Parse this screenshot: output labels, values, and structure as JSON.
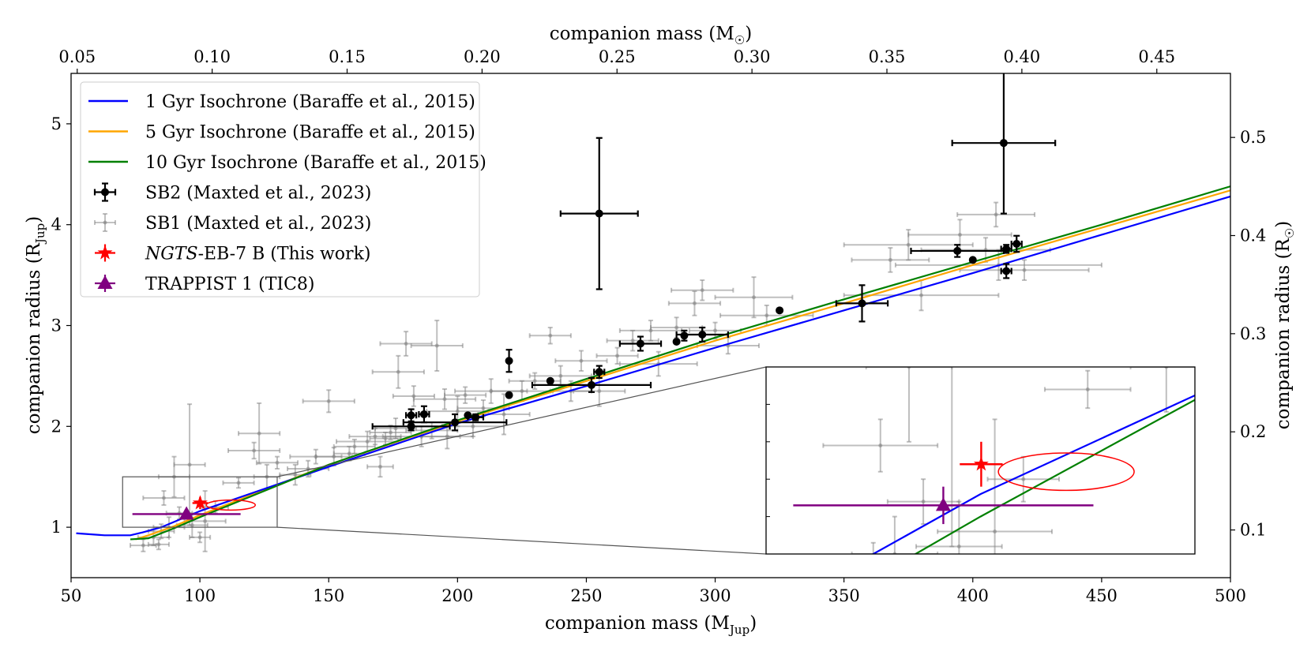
{
  "chart_data": {
    "type": "scatter",
    "title": "",
    "xlabel": "companion mass (M_Jup)",
    "ylabel": "companion radius (R_Jup)",
    "xlabel_top": "companion mass (M☉)",
    "ylabel_right": "companion radius (R☉)",
    "xlim": [
      50,
      500
    ],
    "ylim": [
      0.5,
      5.5
    ],
    "x_ticks": [
      50,
      100,
      150,
      200,
      250,
      300,
      350,
      400,
      450,
      500
    ],
    "y_ticks": [
      1,
      2,
      3,
      4,
      5
    ],
    "top_ticks": [
      0.05,
      0.1,
      0.15,
      0.2,
      0.25,
      0.3,
      0.35,
      0.4,
      0.45
    ],
    "top_tick_labels": [
      "0.05",
      "0.10",
      "0.15",
      "0.20",
      "0.25",
      "0.30",
      "0.35",
      "0.40",
      "0.45"
    ],
    "right_ticks": [
      0.1,
      0.2,
      0.3,
      0.4,
      0.5
    ],
    "right_tick_labels": [
      "0.1",
      "0.2",
      "0.3",
      "0.4",
      "0.5"
    ],
    "mjup_per_msun": 1047.6,
    "rjup_per_rsun": 9.73,
    "legend_position": "upper-left",
    "legend": [
      {
        "label": "1 Gyr Isochrone (Baraffe et al., 2015)",
        "kind": "line",
        "color": "#0000ff"
      },
      {
        "label": "5 Gyr Isochrone (Baraffe et al., 2015)",
        "kind": "line",
        "color": "#ffa500"
      },
      {
        "label": "10 Gyr Isochrone (Baraffe et al., 2015)",
        "kind": "line",
        "color": "#008000"
      },
      {
        "label": "SB2 (Maxted et al., 2023)",
        "kind": "errorbar",
        "color": "#000000"
      },
      {
        "label": "SB1 (Maxted et al., 2023)",
        "kind": "errorbar-light",
        "color": "#808080"
      },
      {
        "label_italic": "NGTS",
        "label_rest": "-EB-7 B (This work)",
        "kind": "star",
        "color": "#ff0000"
      },
      {
        "label": "TRAPPIST 1 (TIC8)",
        "kind": "triangle",
        "color": "#800080"
      }
    ],
    "series": [
      {
        "name": "1 Gyr Isochrone",
        "type": "line",
        "color": "#0000ff",
        "points": [
          [
            52,
            0.94
          ],
          [
            63,
            0.92
          ],
          [
            73,
            0.92
          ],
          [
            78,
            0.95
          ],
          [
            85,
            1.0
          ],
          [
            100,
            1.16
          ],
          [
            150,
            1.6
          ],
          [
            200,
            2.03
          ],
          [
            250,
            2.4
          ],
          [
            300,
            2.78
          ],
          [
            350,
            3.15
          ],
          [
            400,
            3.52
          ],
          [
            450,
            3.9
          ],
          [
            500,
            4.28
          ]
        ]
      },
      {
        "name": "5 Gyr Isochrone",
        "type": "line",
        "color": "#ffa500",
        "points": [
          [
            75,
            0.88
          ],
          [
            80,
            0.92
          ],
          [
            90,
            1.01
          ],
          [
            100,
            1.12
          ],
          [
            150,
            1.62
          ],
          [
            200,
            2.05
          ],
          [
            250,
            2.45
          ],
          [
            300,
            2.85
          ],
          [
            350,
            3.22
          ],
          [
            400,
            3.6
          ],
          [
            450,
            3.97
          ],
          [
            500,
            4.34
          ]
        ]
      },
      {
        "name": "10 Gyr Isochrone",
        "type": "line",
        "color": "#008000",
        "points": [
          [
            73,
            0.88
          ],
          [
            80,
            0.89
          ],
          [
            90,
            0.99
          ],
          [
            100,
            1.1
          ],
          [
            150,
            1.62
          ],
          [
            200,
            2.06
          ],
          [
            250,
            2.47
          ],
          [
            300,
            2.88
          ],
          [
            350,
            3.26
          ],
          [
            400,
            3.63
          ],
          [
            450,
            4.0
          ],
          [
            500,
            4.38
          ]
        ]
      },
      {
        "name": "SB2 (Maxted et al., 2023)",
        "type": "errorbar",
        "color": "#000000",
        "points": [
          {
            "x": 182,
            "y": 2.11,
            "xerr": 2,
            "yerr": 0.06
          },
          {
            "x": 182,
            "y": 2.0,
            "xerr": 15,
            "yerr": 0.04
          },
          {
            "x": 187,
            "y": 2.12,
            "xerr": 2,
            "yerr": 0.08
          },
          {
            "x": 199,
            "y": 2.04,
            "xerr": 20,
            "yerr": 0.08
          },
          {
            "x": 204,
            "y": 2.11,
            "xerr": 0,
            "yerr": 0
          },
          {
            "x": 207,
            "y": 2.09,
            "xerr": 3,
            "yerr": 0.03
          },
          {
            "x": 220,
            "y": 2.31,
            "xerr": 0,
            "yerr": 0
          },
          {
            "x": 220,
            "y": 2.65,
            "xerr": 0,
            "yerr": 0.11
          },
          {
            "x": 236,
            "y": 2.45,
            "xerr": 0,
            "yerr": 0
          },
          {
            "x": 252,
            "y": 2.41,
            "xerr": 23,
            "yerr": 0.07
          },
          {
            "x": 255,
            "y": 2.54,
            "xerr": 2,
            "yerr": 0.06
          },
          {
            "x": 271,
            "y": 2.82,
            "xerr": 8,
            "yerr": 0.07
          },
          {
            "x": 285,
            "y": 2.84,
            "xerr": 0,
            "yerr": 0
          },
          {
            "x": 288,
            "y": 2.9,
            "xerr": 0,
            "yerr": 0.05
          },
          {
            "x": 295,
            "y": 2.91,
            "xerr": 10,
            "yerr": 0.07
          },
          {
            "x": 255,
            "y": 4.11,
            "xerr": 15,
            "yerr": 0.75
          },
          {
            "x": 325,
            "y": 3.15,
            "xerr": 0,
            "yerr": 0
          },
          {
            "x": 357,
            "y": 3.22,
            "xerr": 10,
            "yerr": 0.18
          },
          {
            "x": 394,
            "y": 3.74,
            "xerr": 18,
            "yerr": 0.06
          },
          {
            "x": 400,
            "y": 3.65,
            "xerr": 0,
            "yerr": 0
          },
          {
            "x": 413,
            "y": 3.54,
            "xerr": 2,
            "yerr": 0.07
          },
          {
            "x": 413,
            "y": 3.76,
            "xerr": 2,
            "yerr": 0.04
          },
          {
            "x": 417,
            "y": 3.81,
            "xerr": 2,
            "yerr": 0.08
          },
          {
            "x": 412,
            "y": 4.81,
            "xerr": 20,
            "yerr": 0.7
          }
        ]
      },
      {
        "name": "SB1 (Maxted et al., 2023)",
        "type": "errorbar",
        "color": "#808080",
        "points": [
          {
            "x": 78,
            "y": 0.82,
            "xerr": 5,
            "yerr": 0.06
          },
          {
            "x": 82,
            "y": 0.9,
            "xerr": 6,
            "yerr": 0.08
          },
          {
            "x": 84,
            "y": 0.83,
            "xerr": 4,
            "yerr": 0.05
          },
          {
            "x": 85,
            "y": 0.96,
            "xerr": 5,
            "yerr": 0.07
          },
          {
            "x": 88,
            "y": 1.0,
            "xerr": 6,
            "yerr": 0.1
          },
          {
            "x": 86,
            "y": 1.29,
            "xerr": 8,
            "yerr": 0.07
          },
          {
            "x": 90,
            "y": 1.5,
            "xerr": 6,
            "yerr": 0.2
          },
          {
            "x": 92,
            "y": 1.14,
            "xerr": 5,
            "yerr": 0.06
          },
          {
            "x": 96,
            "y": 1.62,
            "xerr": 6,
            "yerr": 0.6
          },
          {
            "x": 97,
            "y": 1.02,
            "xerr": 6,
            "yerr": 0.12
          },
          {
            "x": 100,
            "y": 0.9,
            "xerr": 4,
            "yerr": 0.05
          },
          {
            "x": 102,
            "y": 1.06,
            "xerr": 8,
            "yerr": 0.3
          },
          {
            "x": 106,
            "y": 1.2,
            "xerr": 5,
            "yerr": 0.06
          },
          {
            "x": 115,
            "y": 1.44,
            "xerr": 6,
            "yerr": 0.05
          },
          {
            "x": 123,
            "y": 1.93,
            "xerr": 8,
            "yerr": 0.3
          },
          {
            "x": 121,
            "y": 1.76,
            "xerr": 10,
            "yerr": 0.08
          },
          {
            "x": 126,
            "y": 1.5,
            "xerr": 5,
            "yerr": 0.12
          },
          {
            "x": 130,
            "y": 1.64,
            "xerr": 8,
            "yerr": 0.06
          },
          {
            "x": 137,
            "y": 1.52,
            "xerr": 6,
            "yerr": 0.1
          },
          {
            "x": 142,
            "y": 1.58,
            "xerr": 8,
            "yerr": 0.08
          },
          {
            "x": 145,
            "y": 1.7,
            "xerr": 10,
            "yerr": 0.07
          },
          {
            "x": 150,
            "y": 2.25,
            "xerr": 10,
            "yerr": 0.11
          },
          {
            "x": 152,
            "y": 1.7,
            "xerr": 7,
            "yerr": 0.09
          },
          {
            "x": 158,
            "y": 1.73,
            "xerr": 6,
            "yerr": 0.07
          },
          {
            "x": 160,
            "y": 1.8,
            "xerr": 8,
            "yerr": 0.07
          },
          {
            "x": 165,
            "y": 1.85,
            "xerr": 12,
            "yerr": 0.1
          },
          {
            "x": 168,
            "y": 1.9,
            "xerr": 10,
            "yerr": 0.08
          },
          {
            "x": 170,
            "y": 1.6,
            "xerr": 5,
            "yerr": 0.1
          },
          {
            "x": 172,
            "y": 1.88,
            "xerr": 6,
            "yerr": 0.06
          },
          {
            "x": 174,
            "y": 1.94,
            "xerr": 8,
            "yerr": 0.07
          },
          {
            "x": 176,
            "y": 1.98,
            "xerr": 8,
            "yerr": 0.1
          },
          {
            "x": 177,
            "y": 2.54,
            "xerr": 10,
            "yerr": 0.16
          },
          {
            "x": 180,
            "y": 2.82,
            "xerr": 10,
            "yerr": 0.12
          },
          {
            "x": 183,
            "y": 2.3,
            "xerr": 8,
            "yerr": 0.1
          },
          {
            "x": 186,
            "y": 1.9,
            "xerr": 15,
            "yerr": 0.1
          },
          {
            "x": 190,
            "y": 1.96,
            "xerr": 10,
            "yerr": 0.08
          },
          {
            "x": 192,
            "y": 2.8,
            "xerr": 10,
            "yerr": 0.25
          },
          {
            "x": 195,
            "y": 2.27,
            "xerr": 12,
            "yerr": 0.1
          },
          {
            "x": 196,
            "y": 1.9,
            "xerr": 10,
            "yerr": 0.12
          },
          {
            "x": 200,
            "y": 2.15,
            "xerr": 12,
            "yerr": 0.15
          },
          {
            "x": 203,
            "y": 2.31,
            "xerr": 8,
            "yerr": 0.08
          },
          {
            "x": 206,
            "y": 2.0,
            "xerr": 12,
            "yerr": 0.1
          },
          {
            "x": 210,
            "y": 2.18,
            "xerr": 10,
            "yerr": 0.08
          },
          {
            "x": 213,
            "y": 2.35,
            "xerr": 14,
            "yerr": 0.12
          },
          {
            "x": 218,
            "y": 2.12,
            "xerr": 10,
            "yerr": 0.2
          },
          {
            "x": 225,
            "y": 2.35,
            "xerr": 12,
            "yerr": 0.1
          },
          {
            "x": 230,
            "y": 2.45,
            "xerr": 10,
            "yerr": 0.08
          },
          {
            "x": 236,
            "y": 2.9,
            "xerr": 8,
            "yerr": 0.08
          },
          {
            "x": 240,
            "y": 2.5,
            "xerr": 12,
            "yerr": 0.1
          },
          {
            "x": 244,
            "y": 2.35,
            "xerr": 8,
            "yerr": 0.1
          },
          {
            "x": 248,
            "y": 2.65,
            "xerr": 10,
            "yerr": 0.1
          },
          {
            "x": 255,
            "y": 2.35,
            "xerr": 10,
            "yerr": 0.15
          },
          {
            "x": 262,
            "y": 2.7,
            "xerr": 8,
            "yerr": 0.08
          },
          {
            "x": 268,
            "y": 2.85,
            "xerr": 10,
            "yerr": 0.1
          },
          {
            "x": 275,
            "y": 2.95,
            "xerr": 12,
            "yerr": 0.1
          },
          {
            "x": 278,
            "y": 2.62,
            "xerr": 15,
            "yerr": 0.12
          },
          {
            "x": 285,
            "y": 2.98,
            "xerr": 10,
            "yerr": 0.1
          },
          {
            "x": 292,
            "y": 3.22,
            "xerr": 10,
            "yerr": 0.12
          },
          {
            "x": 295,
            "y": 3.35,
            "xerr": 12,
            "yerr": 0.1
          },
          {
            "x": 300,
            "y": 2.95,
            "xerr": 10,
            "yerr": 0.08
          },
          {
            "x": 305,
            "y": 2.8,
            "xerr": 12,
            "yerr": 0.08
          },
          {
            "x": 315,
            "y": 3.28,
            "xerr": 15,
            "yerr": 0.2
          },
          {
            "x": 320,
            "y": 3.1,
            "xerr": 18,
            "yerr": 0.1
          },
          {
            "x": 368,
            "y": 3.65,
            "xerr": 15,
            "yerr": 0.12
          },
          {
            "x": 375,
            "y": 3.8,
            "xerr": 25,
            "yerr": 0.15
          },
          {
            "x": 380,
            "y": 3.3,
            "xerr": 30,
            "yerr": 0.15
          },
          {
            "x": 395,
            "y": 3.9,
            "xerr": 20,
            "yerr": 0.15
          },
          {
            "x": 405,
            "y": 3.75,
            "xerr": 25,
            "yerr": 0.12
          },
          {
            "x": 409,
            "y": 4.1,
            "xerr": 15,
            "yerr": 0.12
          },
          {
            "x": 410,
            "y": 3.6,
            "xerr": 40,
            "yerr": 0.15
          },
          {
            "x": 420,
            "y": 3.55,
            "xerr": 25,
            "yerr": 0.1
          }
        ]
      },
      {
        "name": "NGTS-EB-7 B (This work)",
        "type": "star",
        "color": "#ff0000",
        "points": [
          {
            "x": 100.1,
            "y": 1.24,
            "xerr": 3,
            "yerr": 0.06
          }
        ],
        "ellipse": {
          "cx": 112,
          "cy": 1.22,
          "rx": 9.5,
          "ry": 0.05
        }
      },
      {
        "name": "TRAPPIST 1 (TIC8)",
        "type": "triangle",
        "color": "#800080",
        "points": [
          {
            "x": 94.8,
            "y": 1.13,
            "xerr": 21,
            "yerr": 0.05
          }
        ]
      }
    ],
    "inset": {
      "xlim": [
        70,
        130
      ],
      "ylim": [
        1.0,
        1.5
      ],
      "source_box_color": "#808080"
    }
  }
}
